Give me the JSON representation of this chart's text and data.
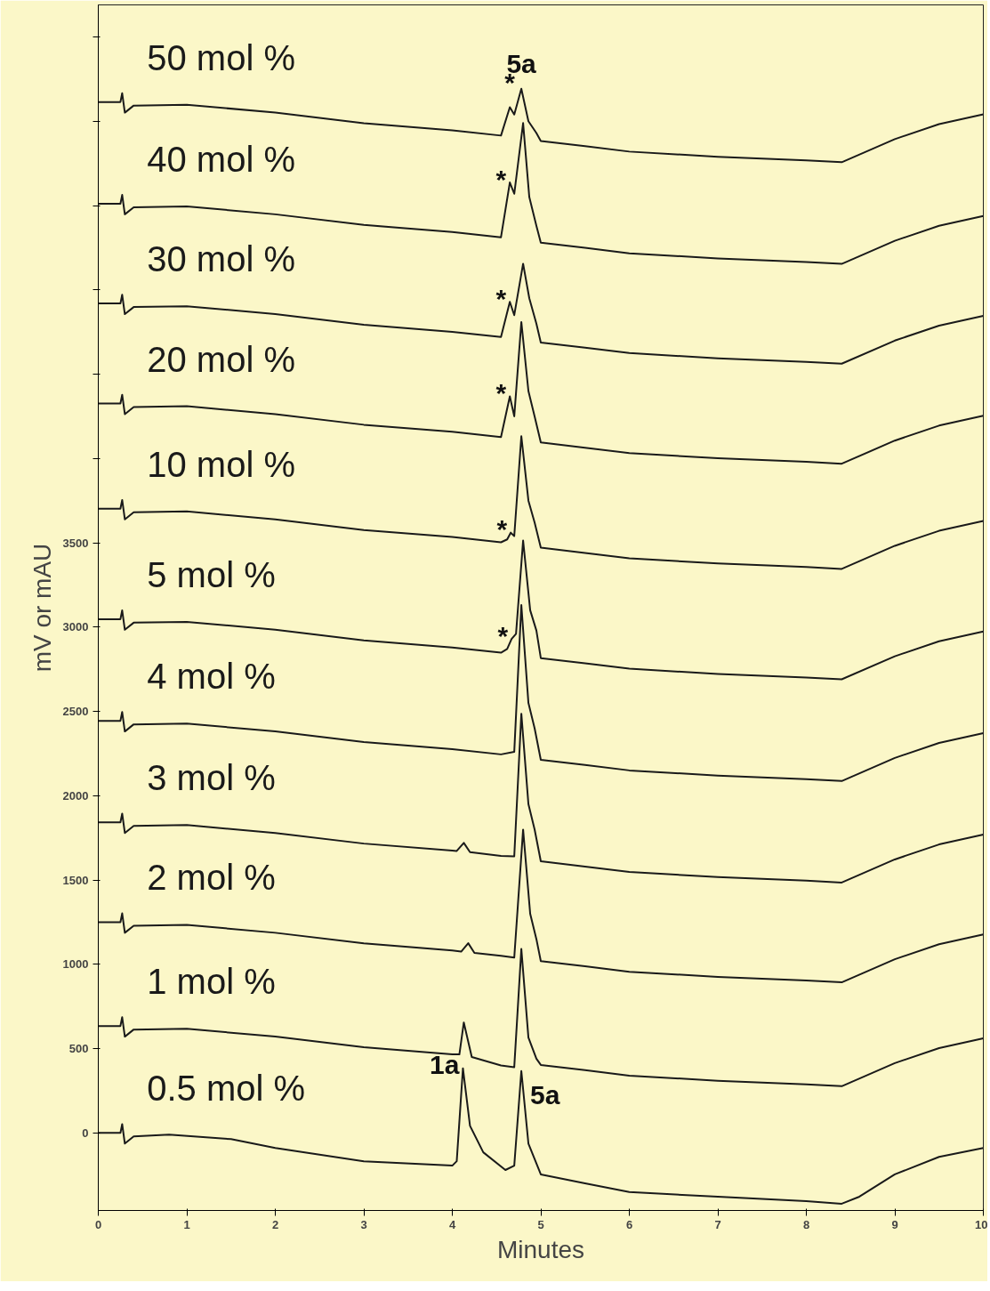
{
  "chart_data": {
    "type": "line",
    "xlabel": "Minutes",
    "ylabel": "mV or mAU",
    "xlim": [
      0,
      10
    ],
    "ylim": [
      -460,
      6690
    ],
    "xticks": [
      0,
      1,
      2,
      3,
      4,
      5,
      6,
      7,
      8,
      9,
      10
    ],
    "yticks": [
      0,
      500,
      1000,
      1500,
      2000,
      2500,
      3000,
      3500,
      {
        "value": 4000,
        "label": null
      },
      {
        "value": 4500,
        "label": null
      },
      {
        "value": 5000,
        "label": null
      },
      {
        "value": 5500,
        "label": null
      },
      {
        "value": 6000,
        "label": null
      },
      {
        "value": 6500,
        "label": null
      }
    ],
    "grid": false,
    "marker": "none",
    "line_style": "solid",
    "series": [
      {
        "name": "0.5 mol %",
        "color": "#1a1a1a",
        "x": [
          0,
          0.25,
          0.27,
          0.3,
          0.4,
          0.8,
          1.5,
          2,
          3,
          4,
          4.05,
          4.12,
          4.2,
          4.35,
          4.6,
          4.7,
          4.78,
          4.86,
          5,
          5.5,
          6,
          7,
          8,
          8.4,
          8.6,
          9,
          9.5,
          10
        ],
        "values": [
          0,
          0,
          52,
          -63,
          -21,
          -10,
          -37,
          -89,
          -168,
          -194,
          -168,
          383,
          42,
          -115,
          -220,
          -194,
          367,
          -63,
          -246,
          -299,
          -351,
          -378,
          -404,
          -420,
          -378,
          -246,
          -142,
          -89
        ]
      },
      {
        "name": "1 mol %",
        "color": "#1a1a1a",
        "x": [
          0,
          0.25,
          0.27,
          0.3,
          0.4,
          1,
          2,
          3,
          4,
          4.08,
          4.13,
          4.22,
          4.55,
          4.7,
          4.78,
          4.86,
          4.95,
          5,
          5.5,
          6,
          7,
          8,
          8.4,
          9,
          9.5,
          10
        ],
        "values": [
          634,
          634,
          686,
          571,
          613,
          618,
          571,
          508,
          466,
          466,
          655,
          450,
          400,
          390,
          1091,
          566,
          440,
          403,
          372,
          340,
          309,
          288,
          277,
          414,
          503,
          561
        ]
      },
      {
        "name": "2 mol %",
        "color": "#1a1a1a",
        "x": [
          0,
          0.25,
          0.27,
          0.3,
          0.4,
          1,
          2,
          3,
          4,
          4.1,
          4.18,
          4.25,
          4.55,
          4.7,
          4.8,
          4.88,
          4.95,
          5,
          5.5,
          6,
          7,
          8,
          8.4,
          9,
          9.5,
          10
        ],
        "values": [
          1250,
          1250,
          1302,
          1187,
          1229,
          1234,
          1187,
          1124,
          1082,
          1075,
          1125,
          1068,
          1051,
          1040,
          1799,
          1300,
          1150,
          1019,
          988,
          956,
          925,
          904,
          893,
          1030,
          1119,
          1177
        ]
      },
      {
        "name": "3 mol %",
        "color": "#1a1a1a",
        "x": [
          0,
          0.25,
          0.27,
          0.3,
          0.4,
          1,
          2,
          3,
          4,
          4.05,
          4.13,
          4.2,
          4.55,
          4.7,
          4.78,
          4.86,
          4.93,
          5,
          5.5,
          6,
          7,
          8,
          8.4,
          9,
          9.5,
          10
        ],
        "values": [
          1842,
          1842,
          1894,
          1779,
          1821,
          1826,
          1779,
          1716,
          1674,
          1672,
          1720,
          1665,
          1643,
          1640,
          2486,
          1950,
          1800,
          1611,
          1580,
          1548,
          1517,
          1496,
          1485,
          1622,
          1711,
          1769
        ]
      },
      {
        "name": "4 mol %",
        "color": "#1a1a1a",
        "x": [
          0,
          0.25,
          0.27,
          0.3,
          0.4,
          1,
          2,
          3,
          4,
          4.55,
          4.7,
          4.78,
          4.86,
          4.93,
          5,
          5.5,
          6,
          7,
          8,
          8.4,
          9,
          9.5,
          10
        ],
        "values": [
          2444,
          2444,
          2496,
          2381,
          2423,
          2428,
          2381,
          2318,
          2276,
          2245,
          2260,
          3131,
          2550,
          2400,
          2213,
          2182,
          2150,
          2119,
          2098,
          2087,
          2224,
          2313,
          2371
        ]
      },
      {
        "name": "5 mol %",
        "color": "#1a1a1a",
        "x": [
          0,
          0.25,
          0.27,
          0.3,
          0.4,
          1,
          2,
          3,
          4,
          4.55,
          4.62,
          4.67,
          4.72,
          4.8,
          4.88,
          4.95,
          5,
          5.5,
          6,
          7,
          8,
          8.4,
          9,
          9.5,
          10
        ],
        "values": [
          3047,
          3047,
          3099,
          2984,
          3026,
          3031,
          2984,
          2921,
          2879,
          2848,
          2870,
          2930,
          2960,
          3513,
          3100,
          2980,
          2816,
          2785,
          2753,
          2722,
          2701,
          2690,
          2827,
          2916,
          2974
        ]
      },
      {
        "name": "10 mol %",
        "color": "#1a1a1a",
        "x": [
          0,
          0.25,
          0.27,
          0.3,
          0.4,
          1,
          2,
          3,
          4,
          4.55,
          4.62,
          4.66,
          4.7,
          4.78,
          4.86,
          4.93,
          5,
          5.5,
          6,
          7,
          8,
          8.4,
          9,
          9.5,
          10
        ],
        "values": [
          3702,
          3702,
          3754,
          3639,
          3681,
          3686,
          3639,
          3576,
          3534,
          3503,
          3520,
          3560,
          3540,
          4132,
          3750,
          3620,
          3471,
          3440,
          3408,
          3377,
          3356,
          3345,
          3482,
          3571,
          3629
        ]
      },
      {
        "name": "20 mol %",
        "color": "#1a1a1a",
        "x": [
          0,
          0.25,
          0.27,
          0.3,
          0.4,
          1,
          2,
          3,
          4,
          4.55,
          4.65,
          4.7,
          4.78,
          4.86,
          4.93,
          5,
          5.5,
          6,
          7,
          8,
          8.4,
          9,
          9.5,
          10
        ],
        "values": [
          4326,
          4326,
          4378,
          4263,
          4305,
          4310,
          4263,
          4200,
          4158,
          4127,
          4368,
          4250,
          4809,
          4400,
          4250,
          4095,
          4064,
          4032,
          4001,
          3980,
          3969,
          4106,
          4195,
          4253
        ]
      },
      {
        "name": "30 mol %",
        "color": "#1a1a1a",
        "x": [
          0,
          0.25,
          0.27,
          0.3,
          0.4,
          1,
          2,
          3,
          4,
          4.55,
          4.65,
          4.7,
          4.8,
          4.87,
          4.95,
          5,
          5.5,
          6,
          7,
          8,
          8.4,
          9,
          9.5,
          10
        ],
        "values": [
          4919,
          4919,
          4971,
          4856,
          4898,
          4903,
          4856,
          4793,
          4751,
          4720,
          4929,
          4850,
          5155,
          4950,
          4800,
          4688,
          4657,
          4625,
          4594,
          4573,
          4562,
          4699,
          4788,
          4846
        ]
      },
      {
        "name": "40 mol %",
        "color": "#1a1a1a",
        "x": [
          0,
          0.25,
          0.27,
          0.3,
          0.4,
          1,
          2,
          3,
          4,
          4.55,
          4.65,
          4.7,
          4.8,
          4.87,
          4.95,
          5,
          5.5,
          6,
          7,
          8,
          8.4,
          9,
          9.5,
          10
        ],
        "values": [
          5511,
          5511,
          5563,
          5448,
          5490,
          5495,
          5448,
          5385,
          5343,
          5312,
          5637,
          5570,
          5989,
          5550,
          5380,
          5280,
          5249,
          5217,
          5186,
          5165,
          5154,
          5291,
          5380,
          5438
        ]
      },
      {
        "name": "50 mol %",
        "color": "#1a1a1a",
        "x": [
          0,
          0.25,
          0.27,
          0.3,
          0.4,
          1,
          2,
          3,
          4,
          4.55,
          4.65,
          4.7,
          4.78,
          4.86,
          4.95,
          5,
          5.5,
          6,
          7,
          8,
          8.4,
          9,
          9.5,
          10
        ],
        "values": [
          6114,
          6114,
          6166,
          6051,
          6093,
          6098,
          6051,
          5988,
          5946,
          5915,
          6083,
          6040,
          6193,
          6000,
          5930,
          5883,
          5852,
          5820,
          5789,
          5768,
          5757,
          5894,
          5983,
          6041
        ]
      }
    ],
    "annotations": [
      {
        "text": "1a",
        "x": 4.12,
        "y": 383
      },
      {
        "text": "5a",
        "x": 4.78,
        "y": 367
      },
      {
        "text": "5a",
        "x": 4.78,
        "y": 6193
      },
      {
        "text": "*",
        "x": 4.65,
        "y": 6083
      },
      {
        "text": "*",
        "x": 4.65,
        "y": 5637
      },
      {
        "text": "*",
        "x": 4.65,
        "y": 4929
      },
      {
        "text": "*",
        "x": 4.65,
        "y": 4368
      },
      {
        "text": "*",
        "x": 4.66,
        "y": 3560
      },
      {
        "text": "*",
        "x": 4.67,
        "y": 2930
      }
    ]
  }
}
